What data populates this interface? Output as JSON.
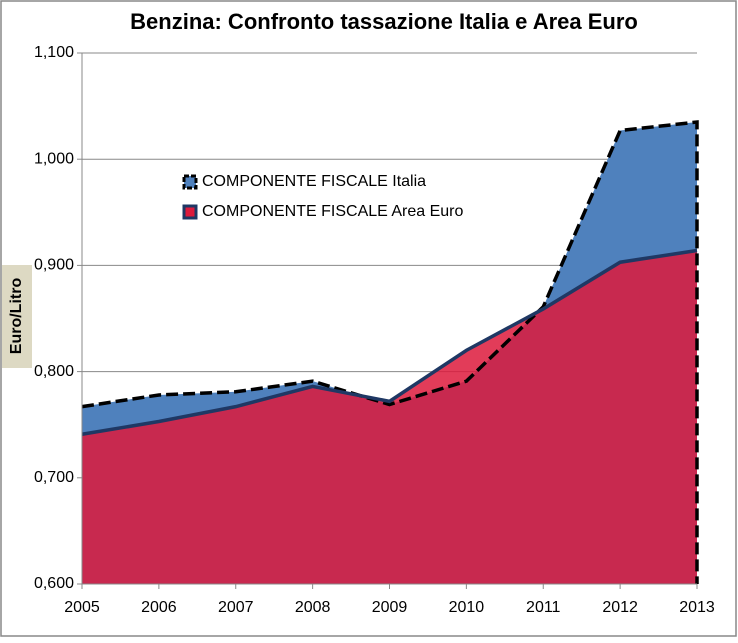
{
  "chart_data": {
    "type": "area",
    "title": "Benzina: Confronto tassazione Italia e Area Euro",
    "y_label": "Euro/Litro",
    "categories": [
      "2005",
      "2006",
      "2007",
      "2008",
      "2009",
      "2010",
      "2011",
      "2012",
      "2013"
    ],
    "series": [
      {
        "name": "COMPONENTE FISCALE Italia",
        "color": "#4f81bd",
        "line_color": "#000000",
        "values": [
          0.767,
          0.778,
          0.781,
          0.791,
          0.769,
          0.791,
          0.861,
          1.027,
          1.035
        ]
      },
      {
        "name": "COMPONENTE FISCALE Area Euro",
        "color": "#dd1a3c",
        "line_color": "#1f3864",
        "values": [
          0.741,
          0.753,
          0.767,
          0.786,
          0.772,
          0.82,
          0.859,
          0.903,
          0.914
        ]
      }
    ],
    "ylim": [
      0.6,
      1.1
    ],
    "yticks": [
      {
        "value": 0.6,
        "label": "0,600"
      },
      {
        "value": 0.7,
        "label": "0,700"
      },
      {
        "value": 0.8,
        "label": "0,800"
      },
      {
        "value": 0.9,
        "label": "0,900"
      },
      {
        "value": 1.0,
        "label": "1,000"
      },
      {
        "value": 1.1,
        "label": "1,100"
      }
    ],
    "grid": true
  }
}
